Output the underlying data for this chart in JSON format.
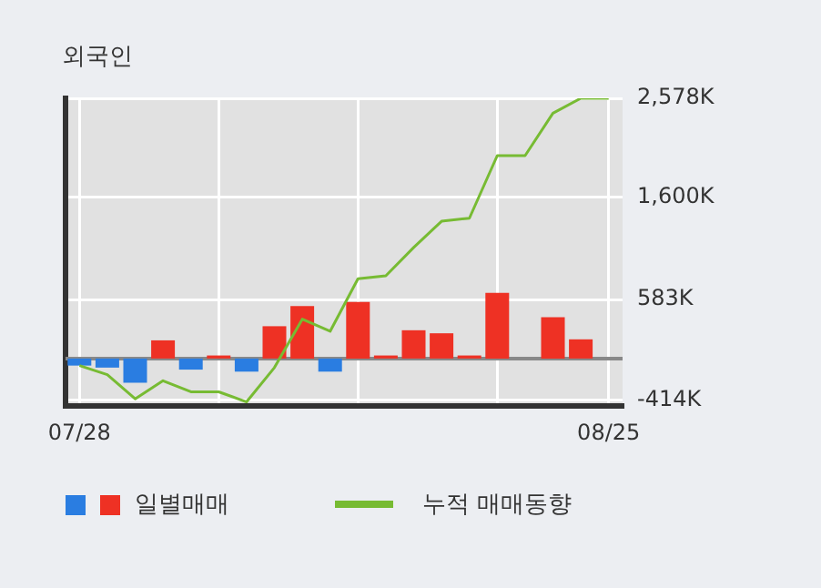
{
  "chart_data": {
    "type": "bar",
    "title": "외국인",
    "categories": [
      "07/28",
      null,
      null,
      null,
      null,
      null,
      null,
      null,
      null,
      null,
      null,
      null,
      null,
      null,
      null,
      null,
      null,
      null,
      null,
      "08/25"
    ],
    "series": [
      {
        "name": "일별매매",
        "colors": [
          "#2a7de1",
          "#2a7de1",
          "#2a7de1",
          "#ee3124",
          "#2a7de1",
          "#ee3124",
          "#2a7de1",
          "#ee3124",
          "#ee3124",
          "#2a7de1",
          "#ee3124",
          "#ee3124",
          "#ee3124",
          "#ee3124",
          "#ee3124",
          "#ee3124",
          "#ee3124",
          "#ee3124",
          "#ee3124",
          "#ee3124"
        ],
        "values": [
          -70,
          -90,
          -240,
          180,
          -110,
          30,
          -130,
          320,
          520,
          -130,
          560,
          30,
          280,
          250,
          30,
          650,
          0,
          410,
          190,
          0
        ]
      },
      {
        "name": "누적 매매동향",
        "type": "line",
        "color": "#77bb33",
        "values": [
          -70,
          -160,
          -400,
          -220,
          -330,
          -330,
          -430,
          -90,
          390,
          270,
          790,
          820,
          1100,
          1360,
          1390,
          2010,
          2010,
          2430,
          2578,
          2578
        ]
      }
    ],
    "ylim": [
      -470,
      2578
    ],
    "yticks": [
      {
        "value": -414,
        "label": "-414K"
      },
      {
        "value": 583,
        "label": "583K"
      },
      {
        "value": 1600,
        "label": "1,600K"
      },
      {
        "value": 2578,
        "label": "2,578K"
      }
    ],
    "ref_lines": [
      {
        "axis": "y",
        "value": 0,
        "color": "#888888"
      }
    ],
    "grid": true,
    "legend": "bottom",
    "marker": "none",
    "line_style": "solid"
  }
}
